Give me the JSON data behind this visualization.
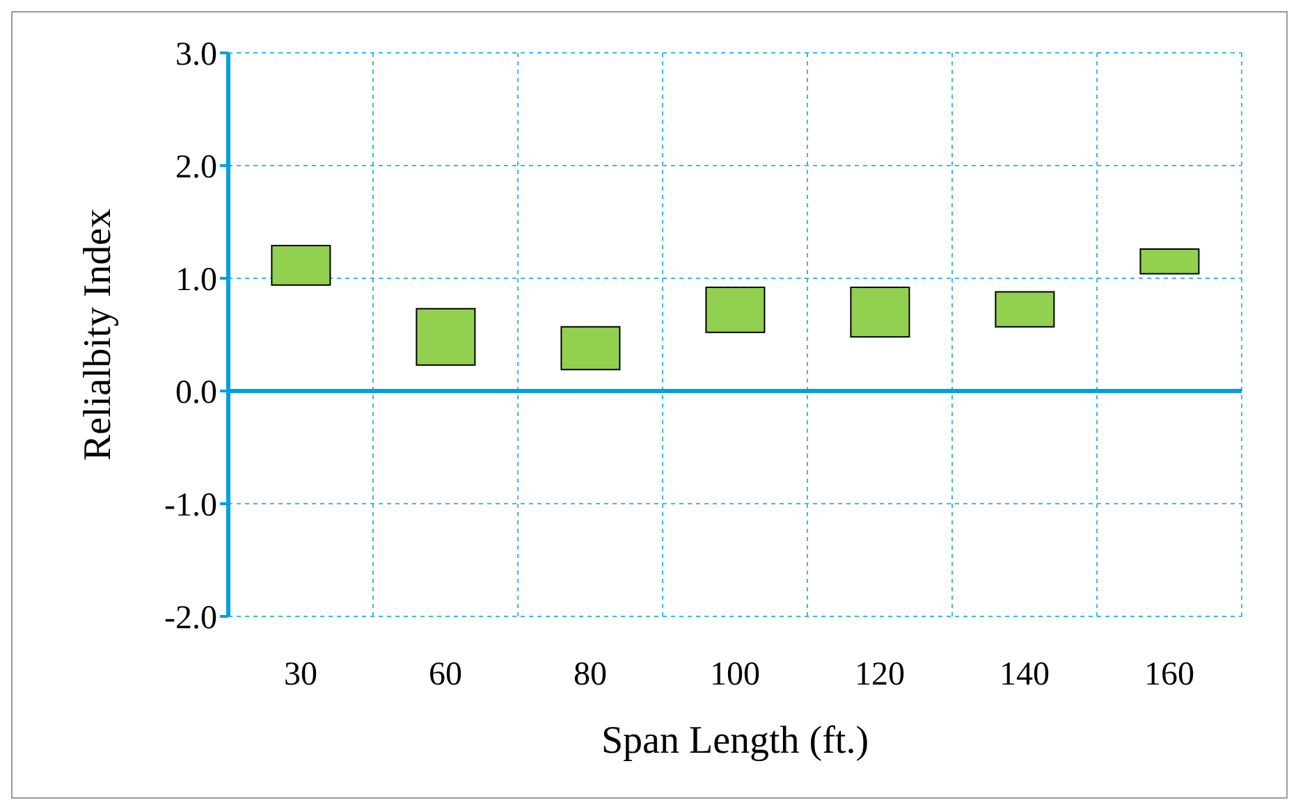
{
  "chart_data": {
    "type": "bar",
    "xlabel": "Span Length (ft.)",
    "ylabel": "Relialbity Index",
    "ref_lines": [
      {
        "axis": "y",
        "value": 0,
        "color": "#00a0e0"
      }
    ],
    "categories": [
      "30",
      "60",
      "80",
      "100",
      "120",
      "140",
      "160"
    ],
    "base": [
      0.94,
      0.23,
      0.19,
      0.52,
      0.48,
      0.57,
      1.04
    ],
    "values": [
      0.35,
      0.5,
      0.38,
      0.4,
      0.44,
      0.31,
      0.22
    ],
    "color": "#92d050",
    "ylim": [
      -2,
      3
    ],
    "yticks": [
      {
        "value": -2,
        "label": "-2.0"
      },
      {
        "value": -1,
        "label": "-1.0"
      },
      {
        "value": 0,
        "label": "0.0"
      },
      {
        "value": 1,
        "label": "1.0"
      },
      {
        "value": 2,
        "label": "2.0"
      },
      {
        "value": 3,
        "label": "3.0"
      }
    ],
    "grid": true,
    "legend": false
  }
}
